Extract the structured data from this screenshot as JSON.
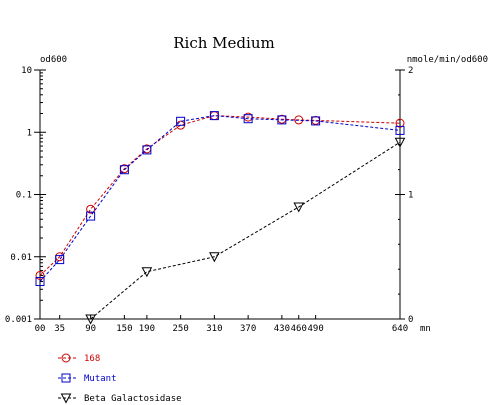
{
  "chart_data": {
    "type": "line",
    "title": "Rich Medium",
    "xlabel": "mn",
    "ylabel_left": "od600",
    "ylabel_right": "nmole/min/od600",
    "x_ticks": [
      0,
      35,
      90,
      150,
      190,
      250,
      310,
      370,
      430,
      460,
      490,
      640
    ],
    "x_tick_labels": [
      "00",
      "35",
      "90",
      "150",
      "190",
      "250",
      "310",
      "370",
      "430",
      "460",
      "490",
      "640"
    ],
    "xlim": [
      0,
      640
    ],
    "y_left": {
      "scale": "log",
      "range": [
        0.001,
        10
      ],
      "ticks": [
        0.001,
        0.01,
        0.1,
        1,
        10
      ],
      "tick_labels": [
        "0.001",
        "0.01",
        "0.1",
        "1",
        "10"
      ]
    },
    "y_right": {
      "scale": "linear",
      "range": [
        0,
        2
      ],
      "ticks": [
        0,
        1,
        2
      ],
      "tick_labels": [
        "0",
        "1",
        "2"
      ]
    },
    "series": [
      {
        "name": "168",
        "color": "#cc0000",
        "marker": "circle",
        "axis": "left",
        "x": [
          0,
          35,
          90,
          150,
          190,
          250,
          310,
          370,
          430,
          460,
          490,
          640
        ],
        "y": [
          0.005,
          0.01,
          0.058,
          0.26,
          0.54,
          1.3,
          1.85,
          1.75,
          1.62,
          1.58,
          1.55,
          1.4
        ]
      },
      {
        "name": "Mutant",
        "color": "#0000cc",
        "marker": "square",
        "axis": "left",
        "x": [
          0,
          35,
          90,
          150,
          190,
          250,
          310,
          370,
          430,
          490,
          640
        ],
        "y": [
          0.004,
          0.009,
          0.045,
          0.25,
          0.52,
          1.5,
          1.85,
          1.65,
          1.58,
          1.52,
          1.07
        ]
      },
      {
        "name": "Beta Galactosidase",
        "color": "#000000",
        "marker": "triangle-down",
        "axis": "right",
        "x": [
          90,
          190,
          310,
          460,
          640
        ],
        "y": [
          0,
          0.38,
          0.5,
          0.9,
          1.42
        ]
      }
    ],
    "legend_placement": "bottom-left",
    "grid": false
  }
}
